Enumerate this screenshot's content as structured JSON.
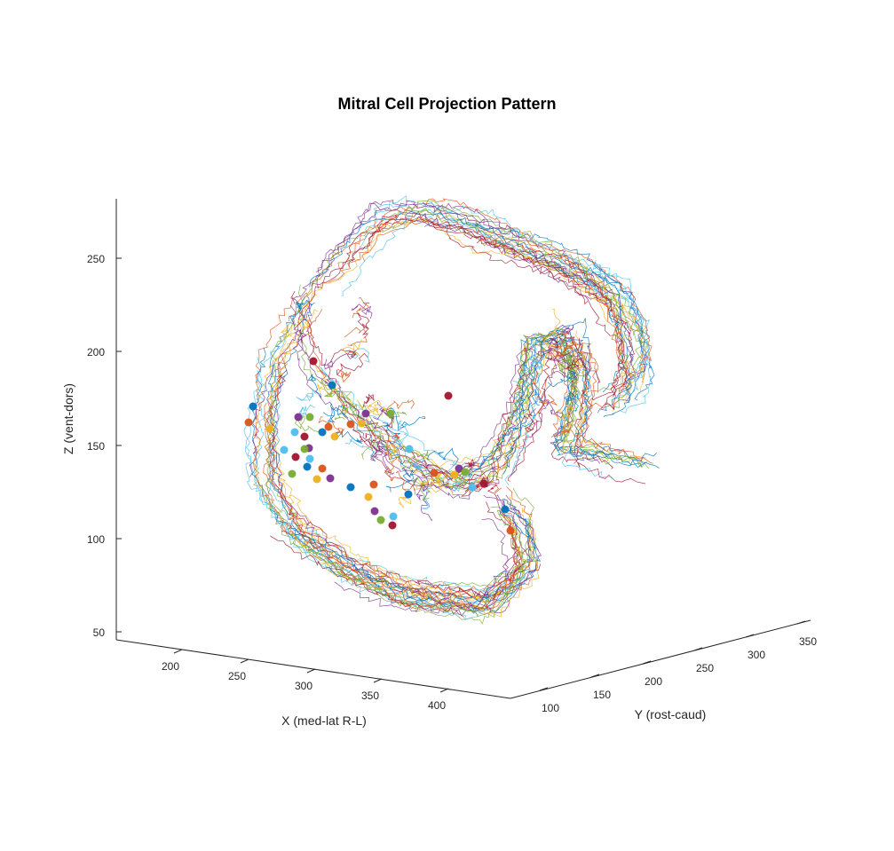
{
  "chart_data": {
    "type": "line3d",
    "title": "Mitral Cell Projection Pattern",
    "xlabel": "X (med-lat R-L)",
    "ylabel": "Y (rost-caud)",
    "zlabel": "Z (vent-dors)",
    "x_ticks": [
      "200",
      "250",
      "300",
      "350",
      "400"
    ],
    "y_ticks": [
      "100",
      "150",
      "200",
      "250",
      "300",
      "350"
    ],
    "z_ticks": [
      "50",
      "100",
      "150",
      "200",
      "250"
    ],
    "grid": false,
    "palette": [
      "#0072BD",
      "#D95319",
      "#EDB120",
      "#7E2F8E",
      "#77AC30",
      "#4DBEEE",
      "#A2142F"
    ]
  }
}
